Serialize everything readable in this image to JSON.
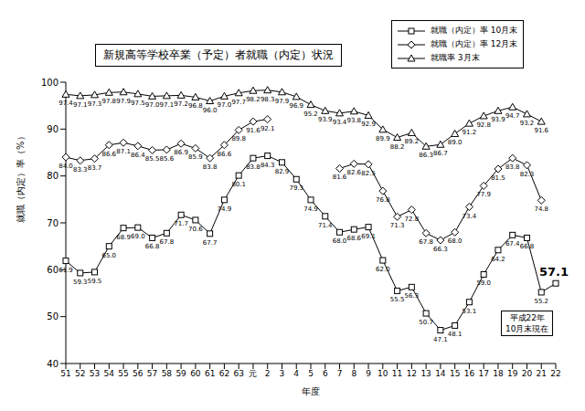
{
  "chart_data": {
    "type": "line",
    "title": "新規高等学校卒業（予定）者就職（内定）状況",
    "x_label": "年度",
    "y_label": "就職（内定）率（%）",
    "annotation": "平成22年\n10月末現在",
    "categories": [
      "51",
      "52",
      "53",
      "54",
      "55",
      "56",
      "57",
      "58",
      "59",
      "60",
      "61",
      "62",
      "63",
      "元",
      "2",
      "3",
      "4",
      "5",
      "6",
      "7",
      "8",
      "9",
      "10",
      "11",
      "12",
      "13",
      "14",
      "15",
      "16",
      "17",
      "18",
      "19",
      "20",
      "21",
      "22"
    ],
    "ylim": [
      40,
      100
    ],
    "yticks": [
      40,
      50,
      60,
      70,
      80,
      90,
      100
    ],
    "grid": false,
    "legend": "top-right",
    "data_labels": true,
    "series": [
      {
        "name": "就職（内定）率 10月末",
        "color": "#000000",
        "marker": "square",
        "line_style": "solid",
        "values": [
          61.9,
          59.3,
          59.5,
          65.0,
          68.9,
          69.0,
          66.8,
          67.8,
          71.7,
          70.6,
          67.7,
          74.9,
          80.1,
          83.8,
          84.3,
          82.9,
          79.3,
          74.9,
          71.4,
          68.0,
          68.6,
          69.1,
          62.0,
          55.5,
          56.3,
          50.7,
          47.1,
          48.1,
          53.1,
          59.0,
          64.2,
          67.4,
          66.8,
          55.2,
          57.1
        ],
        "value_labels": [
          "61.9",
          "59.3",
          "59.5",
          "65.0",
          "68.9",
          "69.0",
          "66.8",
          "67.8",
          "71.7",
          "70.6",
          "67.7",
          "74.9",
          "80.1",
          "83.8",
          "84.3",
          "82.9",
          "79.3",
          "74.9",
          "71.4",
          "68.0",
          "68.6",
          "69.1",
          "62.0",
          "55.5",
          "56.3",
          "50.7",
          "47.1",
          "48.1",
          "53.1",
          "59.0",
          "64.2",
          "67.4",
          "66.8",
          "55.2",
          "57.1"
        ]
      },
      {
        "name": "就職（内定）率 12月末",
        "color": "#000000",
        "marker": "diamond",
        "line_style": "solid",
        "values": [
          84.0,
          83.3,
          83.7,
          86.6,
          87.1,
          86.4,
          85.5,
          85.6,
          86.9,
          85.9,
          83.8,
          86.6,
          89.8,
          91.6,
          92.1,
          null,
          null,
          null,
          null,
          81.6,
          82.6,
          82.5,
          76.8,
          71.3,
          72.8,
          67.8,
          66.3,
          68.0,
          73.4,
          77.9,
          81.5,
          83.8,
          82.3,
          74.8,
          null
        ],
        "value_labels": [
          "84.0",
          "83.3",
          "83.7",
          "86.6",
          "87.1",
          "86.4",
          "85.5",
          "85.6",
          "86.9",
          "85.9",
          "83.8",
          "86.6",
          "89.8",
          "91.6",
          "92.1",
          null,
          null,
          null,
          null,
          "81.6",
          "82.6",
          "82.5",
          "76.8",
          "71.3",
          "72.8",
          "67.8",
          "66.3",
          "68.0",
          "73.4",
          "77.9",
          "81.5",
          "83.8",
          "82.3",
          "74.8",
          null
        ]
      },
      {
        "name": "就職率 3月末",
        "color": "#000000",
        "marker": "triangle",
        "line_style": "solid",
        "values": [
          97.4,
          97.1,
          97.3,
          97.8,
          97.9,
          97.5,
          97.0,
          97.1,
          97.2,
          96.8,
          96.0,
          97.0,
          97.7,
          98.2,
          98.3,
          97.9,
          96.9,
          95.2,
          93.9,
          93.4,
          93.8,
          92.9,
          89.9,
          88.2,
          89.2,
          86.3,
          86.7,
          89.0,
          91.2,
          92.8,
          93.9,
          94.7,
          93.2,
          91.6,
          null
        ],
        "value_labels": [
          "97.4",
          "97.1",
          "97.3",
          "97.8",
          "97.9",
          "97.5",
          "97.0",
          "97.1",
          "97.2",
          "96.8",
          "96.0",
          "97.0",
          "97.7",
          "98.2",
          "98.3",
          "97.9",
          "96.9",
          "95.2",
          "93.9",
          "93.4",
          "93.8",
          "92.9",
          "89.9",
          "88.2",
          "89.2",
          "86.3",
          "86.7",
          "89.0",
          "91.2",
          "92.8",
          "93.9",
          "94.7",
          "93.2",
          "91.6",
          null
        ]
      }
    ]
  }
}
